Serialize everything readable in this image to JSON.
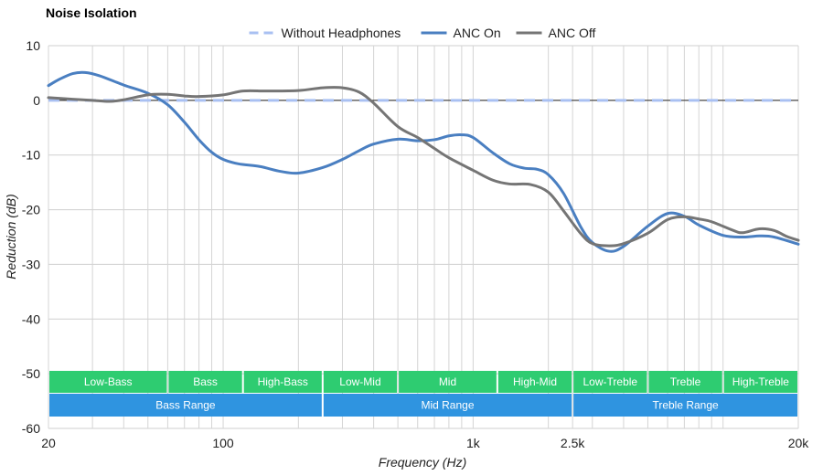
{
  "chart_data": {
    "type": "line",
    "title": "Noise Isolation",
    "xlabel": "Frequency (Hz)",
    "ylabel": "Reduction (dB)",
    "x_scale": "log",
    "xlim": [
      20,
      20000
    ],
    "ylim": [
      -60,
      10
    ],
    "y_ticks": [
      10,
      0,
      -10,
      -20,
      -30,
      -40,
      -50,
      -60
    ],
    "x_ticks": [
      {
        "value": 20,
        "label": "20"
      },
      {
        "value": 100,
        "label": "100"
      },
      {
        "value": 1000,
        "label": "1k"
      },
      {
        "value": 2500,
        "label": "2.5k"
      },
      {
        "value": 20000,
        "label": "20k"
      }
    ],
    "grid": true,
    "legend_position": "top",
    "series": [
      {
        "name": "Without Headphones",
        "color": "#a9c0f2",
        "style": "dashed",
        "points": [
          [
            20,
            0
          ],
          [
            20000,
            0
          ]
        ]
      },
      {
        "name": "ANC On",
        "color": "#4a7fc1",
        "style": "solid",
        "points": [
          [
            20,
            2.7
          ],
          [
            22,
            3.8
          ],
          [
            25,
            4.9
          ],
          [
            28,
            5.1
          ],
          [
            32,
            4.5
          ],
          [
            40,
            2.8
          ],
          [
            50,
            1.3
          ],
          [
            60,
            -0.8
          ],
          [
            70,
            -4
          ],
          [
            80,
            -7.2
          ],
          [
            90,
            -9.5
          ],
          [
            100,
            -10.8
          ],
          [
            115,
            -11.6
          ],
          [
            140,
            -12.1
          ],
          [
            170,
            -13
          ],
          [
            200,
            -13.3
          ],
          [
            250,
            -12.3
          ],
          [
            300,
            -10.8
          ],
          [
            350,
            -9.2
          ],
          [
            400,
            -8
          ],
          [
            500,
            -7.1
          ],
          [
            600,
            -7.4
          ],
          [
            700,
            -7.2
          ],
          [
            800,
            -6.5
          ],
          [
            900,
            -6.3
          ],
          [
            1000,
            -6.8
          ],
          [
            1200,
            -9.6
          ],
          [
            1400,
            -11.6
          ],
          [
            1600,
            -12.4
          ],
          [
            1800,
            -12.6
          ],
          [
            2000,
            -13.6
          ],
          [
            2300,
            -17
          ],
          [
            2700,
            -23.2
          ],
          [
            3000,
            -26
          ],
          [
            3500,
            -27.6
          ],
          [
            4000,
            -26.7
          ],
          [
            5000,
            -23
          ],
          [
            6000,
            -20.7
          ],
          [
            7000,
            -21.2
          ],
          [
            8000,
            -22.8
          ],
          [
            10000,
            -24.7
          ],
          [
            12000,
            -25
          ],
          [
            14000,
            -24.8
          ],
          [
            16000,
            -25
          ],
          [
            20000,
            -26.3
          ]
        ]
      },
      {
        "name": "ANC Off",
        "color": "#757575",
        "style": "solid",
        "points": [
          [
            20,
            0.5
          ],
          [
            25,
            0.2
          ],
          [
            30,
            0
          ],
          [
            35,
            -0.2
          ],
          [
            40,
            0.1
          ],
          [
            50,
            1
          ],
          [
            60,
            1.1
          ],
          [
            70,
            0.8
          ],
          [
            80,
            0.7
          ],
          [
            100,
            1
          ],
          [
            120,
            1.7
          ],
          [
            150,
            1.7
          ],
          [
            200,
            1.8
          ],
          [
            250,
            2.3
          ],
          [
            300,
            2.3
          ],
          [
            350,
            1.5
          ],
          [
            400,
            -0.5
          ],
          [
            500,
            -4.8
          ],
          [
            600,
            -6.8
          ],
          [
            700,
            -8.8
          ],
          [
            800,
            -10.5
          ],
          [
            1000,
            -12.8
          ],
          [
            1200,
            -14.6
          ],
          [
            1400,
            -15.3
          ],
          [
            1700,
            -15.4
          ],
          [
            2000,
            -16.8
          ],
          [
            2300,
            -20.2
          ],
          [
            2700,
            -24.4
          ],
          [
            3000,
            -26.2
          ],
          [
            3500,
            -26.6
          ],
          [
            4000,
            -26.2
          ],
          [
            5000,
            -24.3
          ],
          [
            6000,
            -21.8
          ],
          [
            7000,
            -21.3
          ],
          [
            8000,
            -21.7
          ],
          [
            9000,
            -22.2
          ],
          [
            11000,
            -23.8
          ],
          [
            12000,
            -24.2
          ],
          [
            14000,
            -23.5
          ],
          [
            16000,
            -23.8
          ],
          [
            18000,
            -24.9
          ],
          [
            20000,
            -25.6
          ]
        ]
      }
    ],
    "bands": [
      {
        "label": "Low-Bass",
        "from": 20,
        "to": 60,
        "row": 0
      },
      {
        "label": "Bass",
        "from": 60,
        "to": 120,
        "row": 0
      },
      {
        "label": "High-Bass",
        "from": 120,
        "to": 250,
        "row": 0
      },
      {
        "label": "Low-Mid",
        "from": 250,
        "to": 500,
        "row": 0
      },
      {
        "label": "Mid",
        "from": 500,
        "to": 1250,
        "row": 0
      },
      {
        "label": "High-Mid",
        "from": 1250,
        "to": 2500,
        "row": 0
      },
      {
        "label": "Low-Treble",
        "from": 2500,
        "to": 5000,
        "row": 0
      },
      {
        "label": "Treble",
        "from": 5000,
        "to": 10000,
        "row": 0
      },
      {
        "label": "High-Treble",
        "from": 10000,
        "to": 20000,
        "row": 0
      },
      {
        "label": "Bass Range",
        "from": 20,
        "to": 250,
        "row": 1
      },
      {
        "label": "Mid Range",
        "from": 250,
        "to": 2500,
        "row": 1
      },
      {
        "label": "Treble Range",
        "from": 2500,
        "to": 20000,
        "row": 1
      }
    ],
    "band_colors": [
      "#2ecc71",
      "#2f94e0"
    ]
  }
}
